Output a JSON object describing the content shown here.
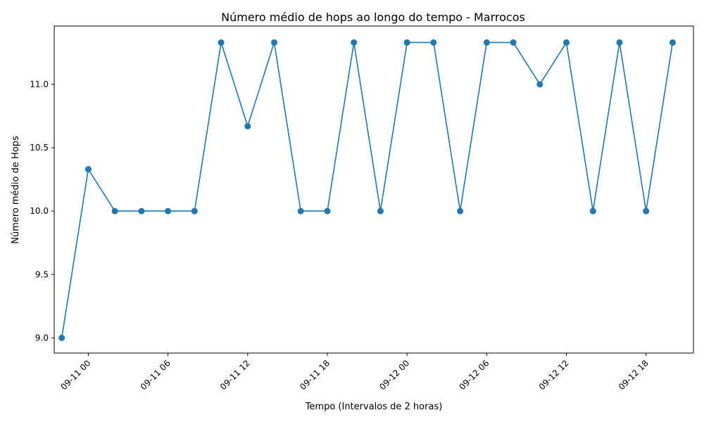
{
  "chart_data": {
    "type": "line",
    "title": "Número médio de hops ao longo do tempo - Marrocos",
    "xlabel": "Tempo (Intervalos de 2 horas)",
    "ylabel": "Número médio de Hops",
    "x_ticks": [
      {
        "label": "09-11 00",
        "t": "2023-09-11 00:00"
      },
      {
        "label": "09-11 06",
        "t": "2023-09-11 06:00"
      },
      {
        "label": "09-11 12",
        "t": "2023-09-11 12:00"
      },
      {
        "label": "09-11 18",
        "t": "2023-09-11 18:00"
      },
      {
        "label": "09-12 00",
        "t": "2023-09-12 00:00"
      },
      {
        "label": "09-12 06",
        "t": "2023-09-12 06:00"
      },
      {
        "label": "09-12 12",
        "t": "2023-09-12 12:00"
      },
      {
        "label": "09-12 18",
        "t": "2023-09-12 18:00"
      }
    ],
    "y_ticks": [
      9.0,
      9.5,
      10.0,
      10.5,
      11.0
    ],
    "y_tick_labels": [
      "9.0",
      "9.5",
      "10.0",
      "10.5",
      "11.0"
    ],
    "ylim": [
      8.88,
      11.46
    ],
    "xlim": [
      "2023-09-10 21:26",
      "2023-09-12 21:34"
    ],
    "color": "#1f77b4",
    "marker": "circle",
    "grid": false,
    "series": [
      {
        "x": [
          "2023-09-10 22:00",
          "2023-09-11 00:00",
          "2023-09-11 02:00",
          "2023-09-11 04:00",
          "2023-09-11 06:00",
          "2023-09-11 08:00",
          "2023-09-11 10:00",
          "2023-09-11 12:00",
          "2023-09-11 14:00",
          "2023-09-11 16:00",
          "2023-09-11 18:00",
          "2023-09-11 20:00",
          "2023-09-11 22:00",
          "2023-09-12 00:00",
          "2023-09-12 02:00",
          "2023-09-12 04:00",
          "2023-09-12 06:00",
          "2023-09-12 08:00",
          "2023-09-12 10:00",
          "2023-09-12 12:00",
          "2023-09-12 14:00",
          "2023-09-12 16:00",
          "2023-09-12 18:00",
          "2023-09-12 20:00"
        ],
        "values": [
          9.0,
          10.33,
          10.0,
          10.0,
          10.0,
          10.0,
          11.33,
          10.67,
          11.33,
          10.0,
          10.0,
          11.33,
          10.0,
          11.33,
          11.33,
          10.0,
          11.33,
          11.33,
          11.0,
          11.33,
          10.0,
          11.33,
          10.0,
          11.33
        ]
      }
    ]
  }
}
